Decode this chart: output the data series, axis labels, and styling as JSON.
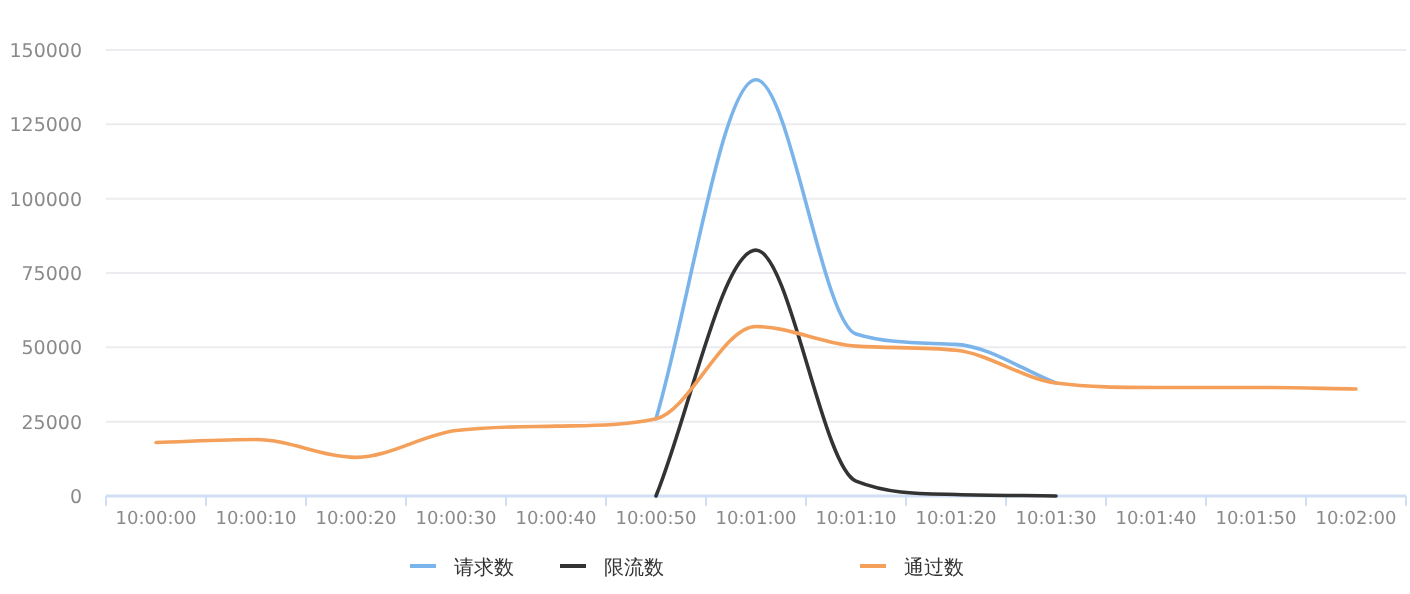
{
  "chart_data": {
    "type": "line",
    "categories": [
      "10:00:00",
      "10:00:10",
      "10:00:20",
      "10:00:30",
      "10:00:40",
      "10:00:50",
      "10:01:00",
      "10:01:10",
      "10:01:20",
      "10:01:30",
      "10:01:40",
      "10:01:50",
      "10:02:00"
    ],
    "series": [
      {
        "name": "请求数",
        "color": "#7ab4ea",
        "values": [
          null,
          null,
          null,
          null,
          null,
          26000,
          140000,
          54500,
          51000,
          38000,
          null,
          null,
          null
        ]
      },
      {
        "name": "限流数",
        "color": "#333333",
        "values": [
          null,
          null,
          null,
          null,
          null,
          0,
          82700,
          5000,
          500,
          0,
          null,
          null,
          null
        ]
      },
      {
        "name": "通过数",
        "color": "#f4a05a",
        "values": [
          18000,
          19000,
          13000,
          22000,
          23500,
          26000,
          57000,
          50400,
          49000,
          38000,
          36500,
          36500,
          36000
        ]
      }
    ],
    "ylim": [
      0,
      150000
    ],
    "yticks": [
      0,
      25000,
      50000,
      75000,
      100000,
      125000,
      150000
    ],
    "grid": "y",
    "legend": "bottom"
  }
}
